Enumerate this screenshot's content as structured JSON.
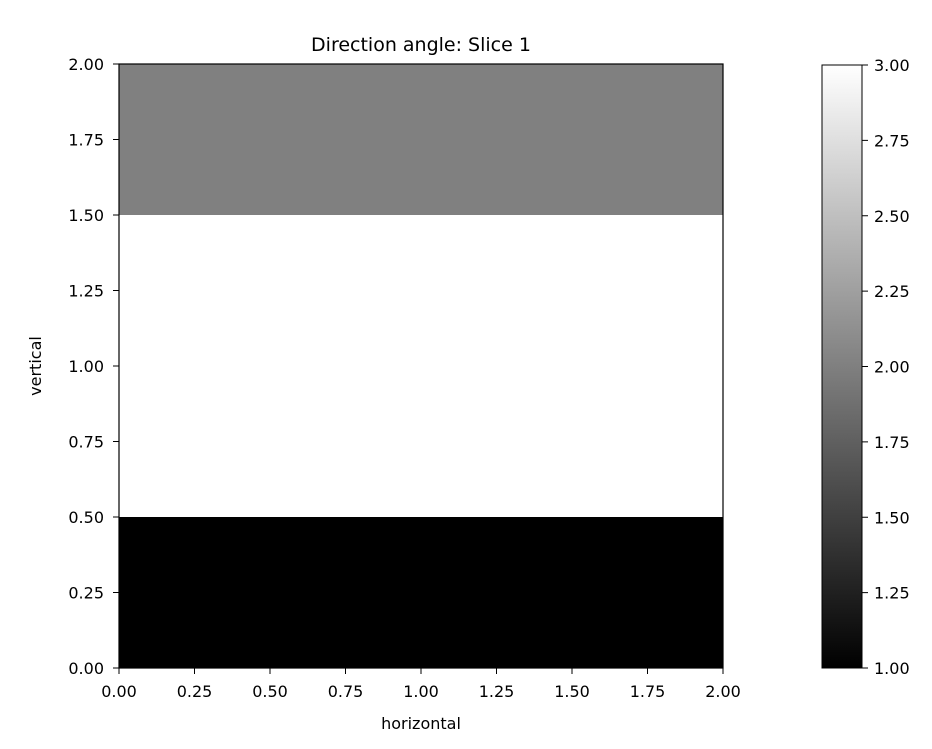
{
  "chart_data": {
    "type": "heatmap",
    "title": "Direction angle: Slice 1",
    "xlabel": "horizontal",
    "ylabel": "vertical",
    "xlim": [
      0,
      2
    ],
    "ylim": [
      0,
      2
    ],
    "xticks": [
      "0.00",
      "0.25",
      "0.50",
      "0.75",
      "1.00",
      "1.25",
      "1.50",
      "1.75",
      "2.00"
    ],
    "yticks": [
      "0.00",
      "0.25",
      "0.50",
      "0.75",
      "1.00",
      "1.25",
      "1.50",
      "1.75",
      "2.00"
    ],
    "cells": [
      {
        "x": [
          0,
          2
        ],
        "y": [
          0,
          0.5
        ],
        "value": 1
      },
      {
        "x": [
          0,
          2
        ],
        "y": [
          0.5,
          1.5
        ],
        "value": 3
      },
      {
        "x": [
          0,
          2
        ],
        "y": [
          1.5,
          2
        ],
        "value": 2
      }
    ],
    "colormap": "gray",
    "colorbar": {
      "vmin": 1,
      "vmax": 3,
      "ticks": [
        "1.00",
        "1.25",
        "1.50",
        "1.75",
        "2.00",
        "2.25",
        "2.50",
        "2.75",
        "3.00"
      ],
      "low_color": "#000000",
      "high_color": "#ffffff"
    }
  }
}
